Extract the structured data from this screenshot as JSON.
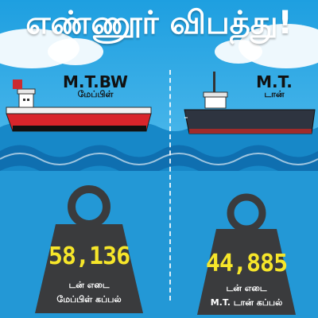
{
  "title": "எண்ணூர் விபத்து!",
  "ships": [
    {
      "name": "M.T.BW",
      "subname": "மேப்பிள்",
      "weight": "58,136",
      "unit": "டன் எடை",
      "ship_label": "மேப்பிள் கப்பல்"
    },
    {
      "name": "M.T.",
      "subname": "டான்",
      "weight": "44,885",
      "unit": "டன் எடை",
      "ship_label": "M.T. டான் கப்பல்"
    }
  ],
  "colors": {
    "sky": "#1e9fe0",
    "sea": "#1585c4",
    "deep_sea": "#1f93d1",
    "weight_value": "#f6e62a",
    "weight_body": "#3a3b3d",
    "ship_left_hull": "#d9252b",
    "ship_right_hull": "#2e3440"
  }
}
